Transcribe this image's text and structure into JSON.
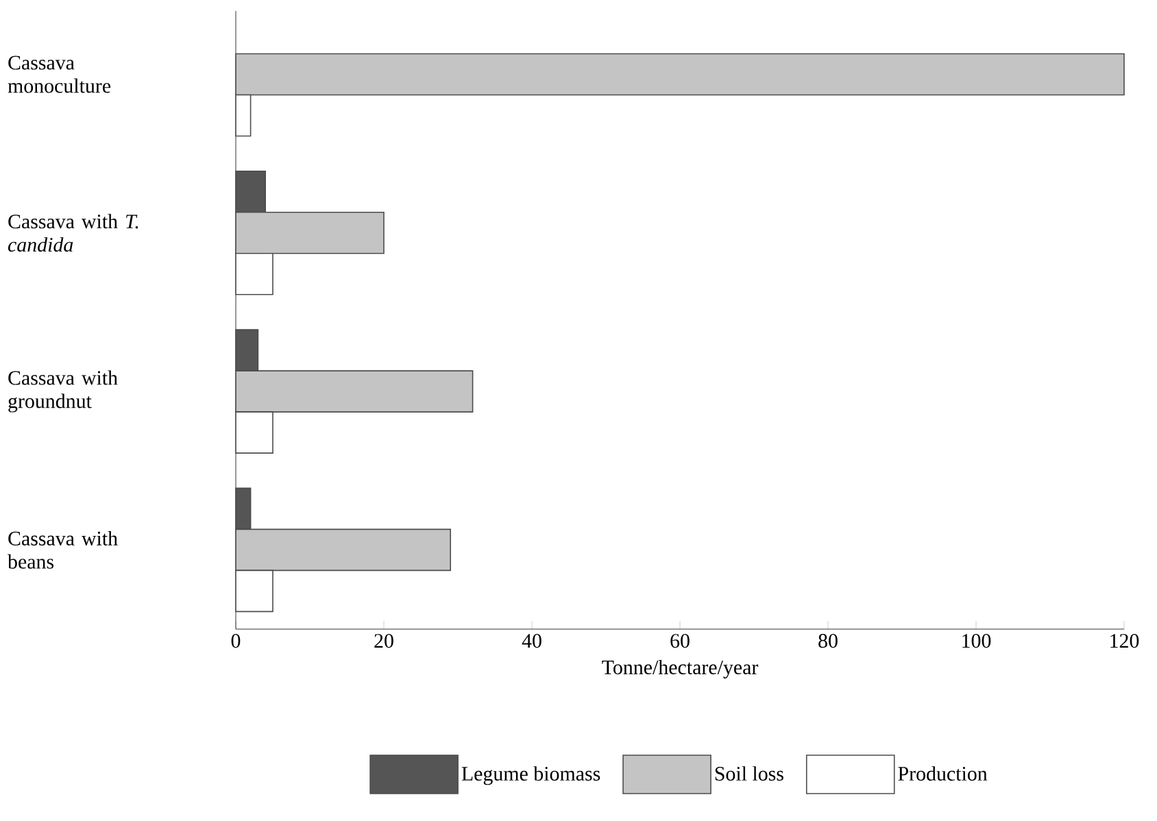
{
  "chart_data": {
    "type": "bar",
    "orientation": "horizontal",
    "xlabel": "Tonne/hectare/year",
    "categories": [
      "Cassava monoculture",
      "Cassava with *T. candida*",
      "Cassava with groundnut",
      "Cassava with beans"
    ],
    "series": [
      {
        "name": "Legume biomass",
        "color": "#555555",
        "values": [
          null,
          4,
          3,
          2
        ]
      },
      {
        "name": "Soil loss",
        "color": "#c4c4c4",
        "values": [
          120,
          20,
          32,
          29
        ]
      },
      {
        "name": "Production",
        "color": "#ffffff",
        "values": [
          2,
          5,
          5,
          5
        ]
      }
    ],
    "xlim": [
      0,
      120
    ],
    "xticks": [
      0,
      20,
      40,
      60,
      80,
      100,
      120
    ],
    "legend": "bottom"
  }
}
